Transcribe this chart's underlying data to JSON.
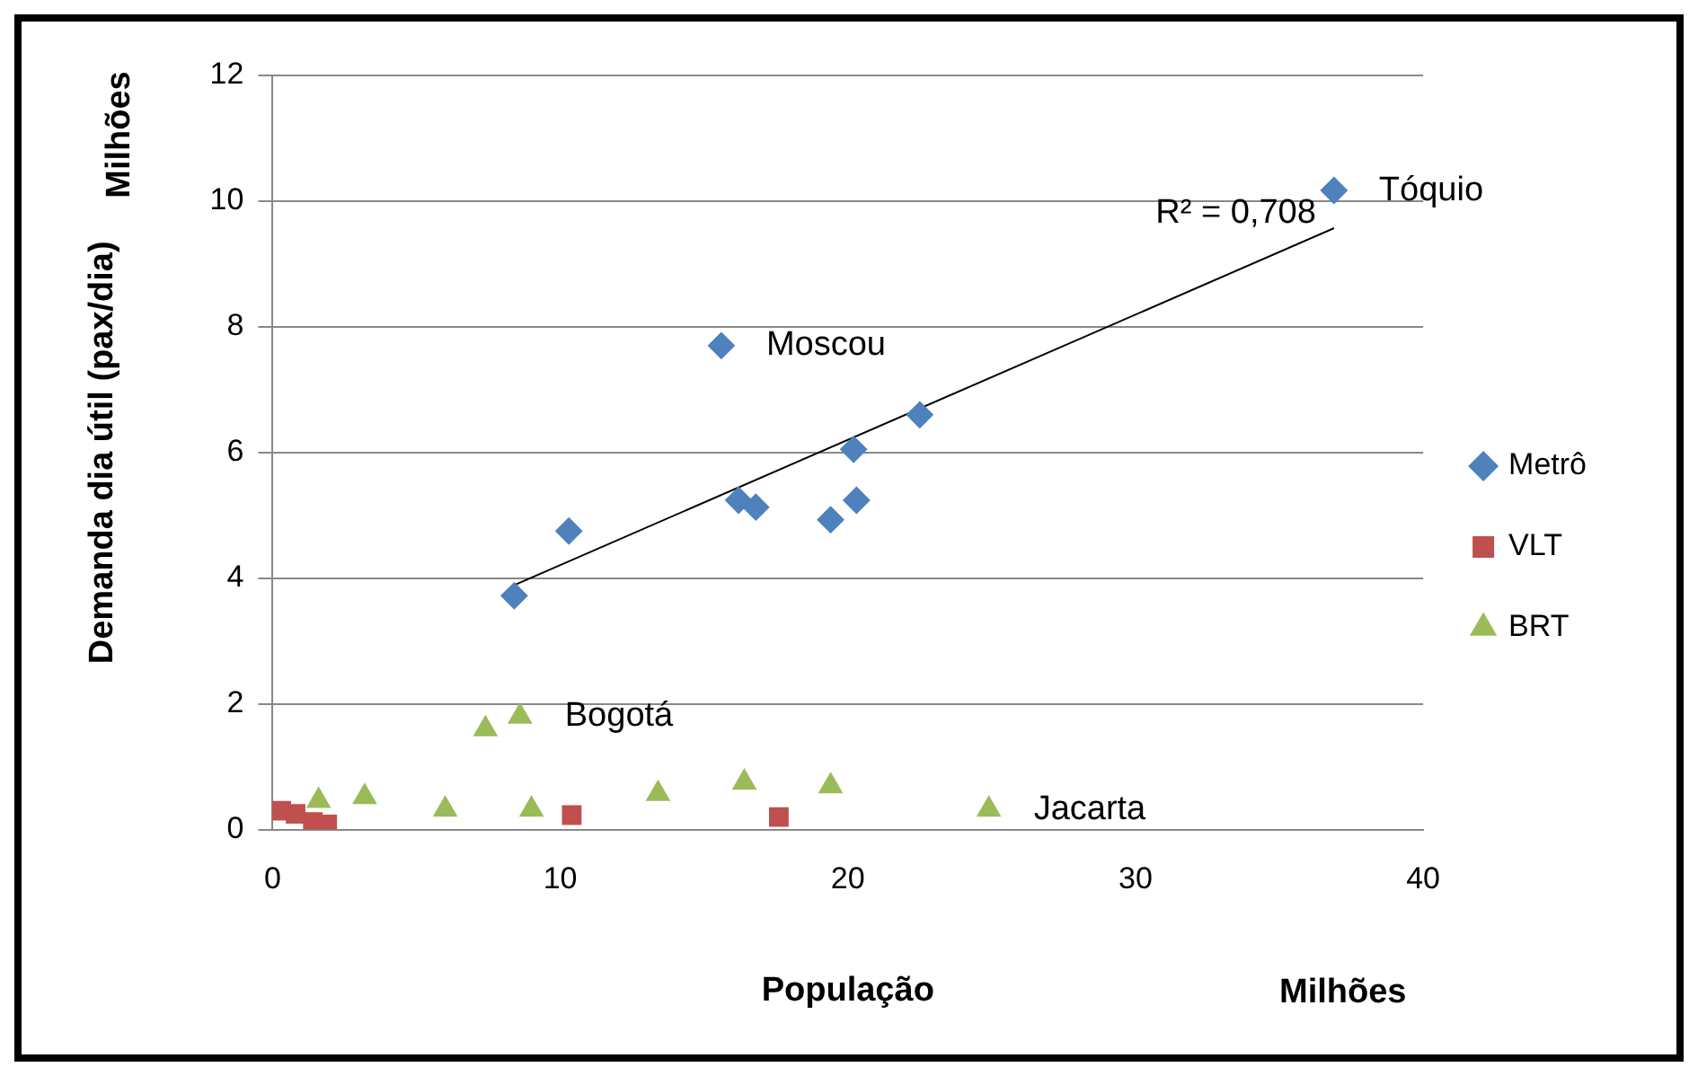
{
  "chart_data": {
    "type": "scatter",
    "xlabel": "População",
    "ylabel": "Demanda dia útil (pax/dia)",
    "xlim": [
      0,
      40
    ],
    "xticks": [
      0,
      10,
      20,
      30,
      40
    ],
    "ylim": [
      0,
      12
    ],
    "yticks": [
      0,
      2,
      4,
      6,
      8,
      10,
      12
    ],
    "grid": "y",
    "legend": "right",
    "series": [
      {
        "name": "Metrô",
        "color": "#4f81bd",
        "marker": "diamond",
        "x": [
          8.4,
          10.3,
          15.6,
          16.2,
          16.8,
          19.4,
          20.2,
          20.3,
          22.5,
          36.9
        ],
        "values": [
          3.72,
          4.75,
          7.7,
          5.24,
          5.13,
          4.93,
          6.05,
          5.24,
          6.6,
          10.17
        ]
      },
      {
        "name": "VLT",
        "color": "#c0504d",
        "marker": "square",
        "x": [
          0.3,
          0.8,
          1.4,
          1.9,
          10.4,
          17.6
        ],
        "values": [
          0.3,
          0.25,
          0.12,
          0.08,
          0.23,
          0.2
        ]
      },
      {
        "name": "BRT",
        "color": "#9bbb59",
        "marker": "triangle",
        "x": [
          1.6,
          3.2,
          6.0,
          7.4,
          8.6,
          9.0,
          13.4,
          16.4,
          19.4,
          24.9
        ],
        "values": [
          0.46,
          0.52,
          0.32,
          1.6,
          1.8,
          0.32,
          0.57,
          0.75,
          0.69,
          0.32
        ]
      },
      {
        "type": "line",
        "color": "#000000",
        "marker": "none",
        "x": [
          8.3,
          36.9
        ],
        "values": [
          3.87,
          9.57
        ]
      }
    ],
    "annotations": [
      {
        "text": "Tóquio",
        "x": 36.9,
        "y": 10.17
      },
      {
        "text": "Moscou",
        "x": 15.6,
        "y": 7.7
      },
      {
        "text": "Bogotá",
        "x": 8.6,
        "y": 1.8
      },
      {
        "text": "Jacarta",
        "x": 24.9,
        "y": 0.32
      },
      {
        "text": "R² = 0,708",
        "x": 36.9,
        "y": 9.57
      },
      "Milhões",
      "Milhões"
    ]
  }
}
